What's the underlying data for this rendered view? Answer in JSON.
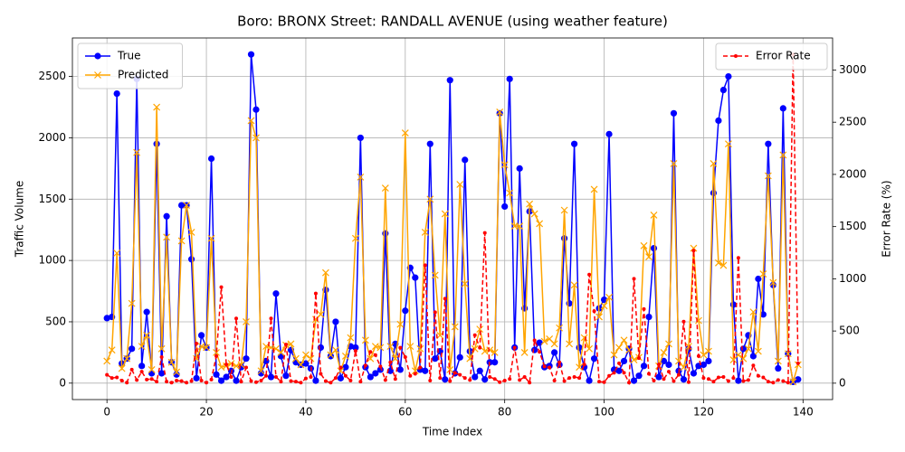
{
  "chart_data": {
    "type": "line",
    "title": "Boro: BRONX Street: RANDALL AVENUE (using weather feature)",
    "xlabel": "Time Index",
    "ylabel": "Traffic Volume",
    "y2label": "Error Rate (%)",
    "x": [
      0,
      1,
      2,
      3,
      4,
      5,
      6,
      7,
      8,
      9,
      10,
      11,
      12,
      13,
      14,
      15,
      16,
      17,
      18,
      19,
      20,
      21,
      22,
      23,
      24,
      25,
      26,
      27,
      28,
      29,
      30,
      31,
      32,
      33,
      34,
      35,
      36,
      37,
      38,
      39,
      40,
      41,
      42,
      43,
      44,
      45,
      46,
      47,
      48,
      49,
      50,
      51,
      52,
      53,
      54,
      55,
      56,
      57,
      58,
      59,
      60,
      61,
      62,
      63,
      64,
      65,
      66,
      67,
      68,
      69,
      70,
      71,
      72,
      73,
      74,
      75,
      76,
      77,
      78,
      79,
      80,
      81,
      82,
      83,
      84,
      85,
      86,
      87,
      88,
      89,
      90,
      91,
      92,
      93,
      94,
      95,
      96,
      97,
      98,
      99,
      100,
      101,
      102,
      103,
      104,
      105,
      106,
      107,
      108,
      109,
      110,
      111,
      112,
      113,
      114,
      115,
      116,
      117,
      118,
      119,
      120,
      121,
      122,
      123,
      124,
      125,
      126,
      127,
      128,
      129,
      130,
      131,
      132,
      133,
      134,
      135,
      136,
      137,
      138,
      139
    ],
    "series": [
      {
        "name": "True",
        "color": "#0000ff",
        "marker": "o",
        "linestyle": "solid",
        "axis": "y",
        "values": [
          530,
          540,
          2360,
          160,
          200,
          280,
          2480,
          140,
          580,
          80,
          1950,
          80,
          1360,
          170,
          70,
          1450,
          1450,
          1010,
          40,
          390,
          290,
          1830,
          70,
          20,
          50,
          100,
          20,
          130,
          200,
          2680,
          2230,
          80,
          180,
          50,
          730,
          220,
          60,
          270,
          170,
          150,
          160,
          120,
          20,
          290,
          760,
          220,
          500,
          40,
          130,
          300,
          290,
          2000,
          130,
          50,
          80,
          110,
          1220,
          100,
          320,
          110,
          590,
          940,
          860,
          110,
          100,
          1950,
          200,
          260,
          30,
          2470,
          80,
          210,
          1820,
          260,
          50,
          100,
          30,
          170,
          170,
          2200,
          1440,
          2480,
          290,
          1750,
          610,
          1400,
          270,
          330,
          130,
          140,
          250,
          150,
          1180,
          650,
          1950,
          290,
          130,
          20,
          200,
          610,
          680,
          2030,
          110,
          100,
          180,
          280,
          20,
          60,
          140,
          540,
          1100,
          50,
          180,
          150,
          2200,
          100,
          30,
          280,
          80,
          140,
          150,
          180,
          1550,
          2140,
          2390,
          2500,
          640,
          20,
          280,
          390,
          220,
          850,
          560,
          1950,
          800,
          120,
          2240,
          240,
          10,
          30
        ]
      },
      {
        "name": "Predicted",
        "color": "#ffa500",
        "marker": "x",
        "linestyle": "solid",
        "axis": "y",
        "values": [
          180,
          270,
          1060,
          120,
          200,
          650,
          1880,
          300,
          390,
          110,
          2250,
          280,
          1190,
          170,
          90,
          1160,
          1450,
          1230,
          200,
          300,
          290,
          1180,
          250,
          130,
          140,
          160,
          140,
          150,
          500,
          2140,
          2000,
          100,
          300,
          290,
          280,
          250,
          310,
          320,
          200,
          150,
          230,
          200,
          520,
          560,
          900,
          230,
          270,
          100,
          220,
          370,
          1180,
          1680,
          350,
          200,
          300,
          290,
          1590,
          300,
          200,
          480,
          2040,
          300,
          100,
          280,
          1230,
          1500,
          880,
          390,
          1380,
          110,
          460,
          1620,
          810,
          200,
          280,
          440,
          260,
          270,
          250,
          2210,
          1780,
          1550,
          1280,
          1280,
          250,
          1460,
          1380,
          1300,
          340,
          360,
          320,
          450,
          1410,
          320,
          800,
          130,
          370,
          280,
          1580,
          540,
          630,
          700,
          230,
          290,
          350,
          270,
          190,
          210,
          1120,
          1030,
          1370,
          140,
          250,
          320,
          1790,
          180,
          130,
          300,
          1100,
          510,
          230,
          260,
          1790,
          980,
          960,
          1950,
          190,
          230,
          200,
          280,
          580,
          260,
          890,
          1690,
          820,
          180,
          1860,
          240,
          10,
          150
        ]
      },
      {
        "name": "Error Rate",
        "color": "#ff0000",
        "marker": ".",
        "linestyle": "dashed",
        "axis": "y2",
        "values": [
          80,
          50,
          55,
          25,
          5,
          130,
          30,
          110,
          35,
          40,
          15,
          250,
          15,
          5,
          25,
          20,
          5,
          20,
          380,
          25,
          5,
          35,
          260,
          920,
          180,
          60,
          620,
          15,
          150,
          20,
          10,
          25,
          70,
          620,
          60,
          15,
          370,
          20,
          15,
          5,
          45,
          60,
          860,
          90,
          20,
          5,
          50,
          150,
          70,
          25,
          310,
          15,
          170,
          300,
          270,
          160,
          30,
          200,
          40,
          340,
          250,
          70,
          90,
          150,
          1130,
          25,
          680,
          50,
          810,
          20,
          100,
          80,
          50,
          30,
          460,
          340,
          1440,
          60,
          40,
          10,
          25,
          40,
          340,
          30,
          60,
          5,
          410,
          300,
          160,
          150,
          25,
          200,
          20,
          50,
          60,
          50,
          180,
          1040,
          690,
          15,
          10,
          70,
          100,
          190,
          100,
          5,
          1000,
          240,
          710,
          90,
          25,
          180,
          40,
          110,
          20,
          80,
          590,
          10,
          1270,
          260,
          50,
          40,
          15,
          55,
          60,
          20,
          50,
          1200,
          20,
          30,
          170,
          70,
          55,
          15,
          5,
          30,
          20,
          5,
          3150,
          190
        ]
      }
    ],
    "xlim": [
      -6.95,
      145.95
    ],
    "xticks": [
      0,
      20,
      40,
      60,
      80,
      100,
      120,
      140
    ],
    "ylim": [
      -134,
      2814
    ],
    "yticks": [
      0,
      500,
      1000,
      1500,
      2000,
      2500
    ],
    "y2lim": [
      -157,
      3307
    ],
    "y2ticks": [
      0,
      500,
      1000,
      1500,
      2000,
      2500,
      3000
    ],
    "grid": true,
    "legend_loc": {
      "y": "upper left",
      "y2": "upper right"
    }
  }
}
